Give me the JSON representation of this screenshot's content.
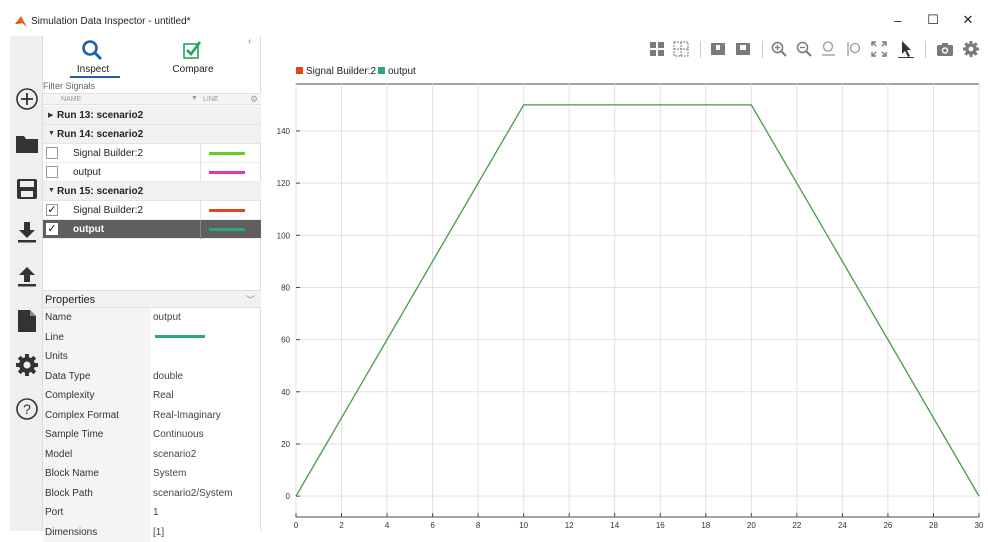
{
  "window": {
    "title": "Simulation Data Inspector - untitled*",
    "minimize": "–",
    "maximize": "☐",
    "close": "✕"
  },
  "tabs": {
    "inspect": "Inspect",
    "compare": "Compare",
    "collapse": "‹"
  },
  "filter": {
    "label": "Filter Signals",
    "col_name": "NAME",
    "col_line": "LINE"
  },
  "runs": [
    {
      "label": "Run 13: scenario2",
      "expanded": false,
      "signals": []
    },
    {
      "label": "Run 14: scenario2",
      "expanded": true,
      "signals": [
        {
          "name": "Signal Builder:2",
          "checked": false,
          "color": "#66cc22",
          "selected": false
        },
        {
          "name": "output",
          "checked": false,
          "color": "#e833b5",
          "selected": false
        }
      ]
    },
    {
      "label": "Run 15: scenario2",
      "expanded": true,
      "signals": [
        {
          "name": "Signal Builder:2",
          "checked": true,
          "color": "#e3461e",
          "selected": false
        },
        {
          "name": "output",
          "checked": true,
          "color": "#2aa876",
          "selected": true
        }
      ]
    }
  ],
  "properties": {
    "header": "Properties",
    "rows": [
      {
        "key": "Name",
        "value": "output"
      },
      {
        "key": "Line",
        "value": "",
        "line_color": "#2aa876"
      },
      {
        "key": "Units",
        "value": ""
      },
      {
        "key": "Data Type",
        "value": "double"
      },
      {
        "key": "Complexity",
        "value": "Real"
      },
      {
        "key": "Complex Format",
        "value": "Real-Imaginary"
      },
      {
        "key": "Sample Time",
        "value": "Continuous"
      },
      {
        "key": "Model",
        "value": "scenario2"
      },
      {
        "key": "Block Name",
        "value": "System"
      },
      {
        "key": "Block Path",
        "value": "scenario2/System"
      },
      {
        "key": "Port",
        "value": "1"
      },
      {
        "key": "Dimensions",
        "value": "[1]"
      }
    ]
  },
  "toolbar_icons": [
    "layout-grid-icon",
    "subplot-grid-icon",
    "subplot-1-icon",
    "subplot-2-icon",
    "zoom-in-icon",
    "zoom-out-icon",
    "zoom-y-icon",
    "zoom-x-icon",
    "fit-to-view-icon",
    "cursor-icon",
    "snapshot-icon",
    "settings-icon"
  ],
  "chart_data": {
    "type": "line",
    "legend": [
      {
        "name": "Signal Builder:2",
        "color": "#e3461e"
      },
      {
        "name": "output",
        "color": "#2aa876"
      }
    ],
    "legend_placement": "top-left",
    "series": [
      {
        "name": "output",
        "color": "#4a9a4a",
        "x": [
          0,
          10,
          20,
          30
        ],
        "y": [
          0,
          150,
          150,
          0
        ]
      }
    ],
    "xlim": [
      0,
      30
    ],
    "ylim": [
      -8,
      158
    ],
    "xticks": [
      0,
      2,
      4,
      6,
      8,
      10,
      12,
      14,
      16,
      18,
      20,
      22,
      24,
      26,
      28,
      30
    ],
    "yticks": [
      0,
      20,
      40,
      60,
      80,
      100,
      120,
      140
    ],
    "grid": true,
    "title": "",
    "xlabel": "",
    "ylabel": ""
  }
}
